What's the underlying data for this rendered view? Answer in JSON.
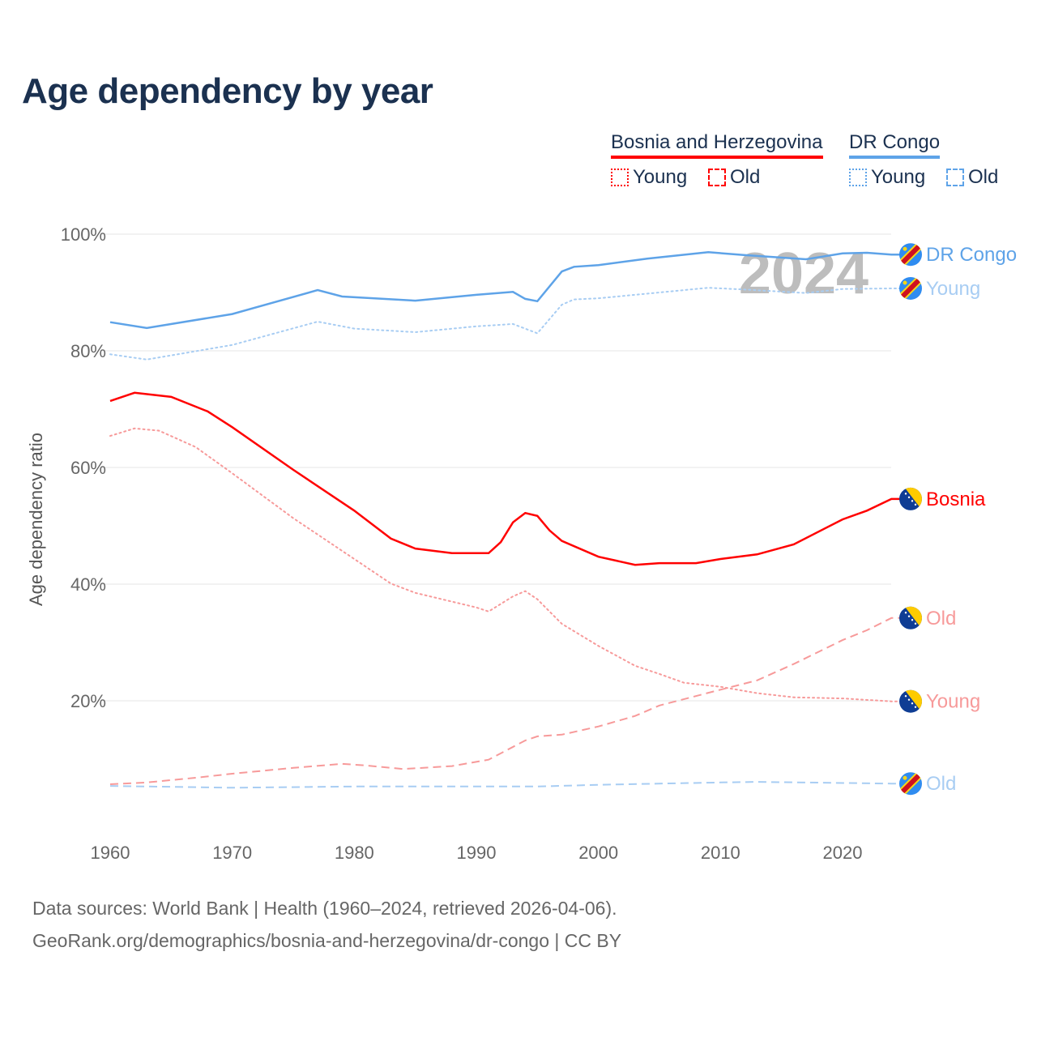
{
  "chart_data": {
    "type": "line",
    "title": "Age dependency by year",
    "ylabel": "Age dependency ratio",
    "xlabel": "",
    "xlim": [
      1960,
      2024
    ],
    "ylim": [
      0,
      100
    ],
    "x_ticks": [
      "1960",
      "1970",
      "1980",
      "1990",
      "2000",
      "2010",
      "2020"
    ],
    "y_ticks": [
      "20%",
      "40%",
      "60%",
      "80%",
      "100%"
    ],
    "y_tick_values": [
      20,
      40,
      60,
      80,
      100
    ],
    "year_watermark": "2024",
    "grid": true,
    "legend": {
      "placement": "top-right",
      "groups": [
        {
          "name": "Bosnia and Herzegovina",
          "color": "#ff0000",
          "items": [
            "Young",
            "Old"
          ]
        },
        {
          "name": "DR Congo",
          "color": "#5ea3e8",
          "items": [
            "Young",
            "Old"
          ]
        }
      ]
    },
    "series": [
      {
        "name": "DR Congo",
        "end_label": "DR Congo",
        "color": "#5ea3e8",
        "style": "solid",
        "flag": "cd",
        "points": [
          [
            1960,
            84.9
          ],
          [
            1963,
            83.9
          ],
          [
            1970,
            86.3
          ],
          [
            1977,
            90.4
          ],
          [
            1979,
            89.3
          ],
          [
            1985,
            88.6
          ],
          [
            1990,
            89.6
          ],
          [
            1993,
            90.1
          ],
          [
            1994,
            88.9
          ],
          [
            1995,
            88.5
          ],
          [
            1997,
            93.6
          ],
          [
            1998,
            94.4
          ],
          [
            2000,
            94.7
          ],
          [
            2004,
            95.8
          ],
          [
            2009,
            96.9
          ],
          [
            2012,
            96.4
          ],
          [
            2017,
            95.7
          ],
          [
            2020,
            96.7
          ],
          [
            2022,
            96.8
          ],
          [
            2024,
            96.5
          ]
        ]
      },
      {
        "name": "DR Congo Young",
        "end_label": "Young",
        "color": "#a8cdf3",
        "style": "dotted",
        "flag": "cd",
        "points": [
          [
            1960,
            79.4
          ],
          [
            1963,
            78.5
          ],
          [
            1970,
            81
          ],
          [
            1977,
            85
          ],
          [
            1980,
            83.8
          ],
          [
            1985,
            83.2
          ],
          [
            1990,
            84.2
          ],
          [
            1993,
            84.6
          ],
          [
            1995,
            83
          ],
          [
            1997,
            87.9
          ],
          [
            1998,
            88.8
          ],
          [
            2000,
            89
          ],
          [
            2005,
            90
          ],
          [
            2009,
            90.8
          ],
          [
            2012,
            90.5
          ],
          [
            2017,
            89.9
          ],
          [
            2020,
            90.6
          ],
          [
            2024,
            90.7
          ]
        ]
      },
      {
        "name": "DR Congo Old",
        "end_label": "Old",
        "color": "#a8cdf3",
        "style": "dashed",
        "flag": "cd",
        "points": [
          [
            1960,
            5.4
          ],
          [
            1970,
            5.1
          ],
          [
            1980,
            5.3
          ],
          [
            1995,
            5.3
          ],
          [
            2000,
            5.6
          ],
          [
            2010,
            6.0
          ],
          [
            2013,
            6.1
          ],
          [
            2024,
            5.8
          ]
        ]
      },
      {
        "name": "Bosnia",
        "end_label": "Bosnia",
        "color": "#ff0000",
        "style": "solid",
        "flag": "ba",
        "points": [
          [
            1960,
            71.4
          ],
          [
            1962,
            72.8
          ],
          [
            1965,
            72.1
          ],
          [
            1968,
            69.6
          ],
          [
            1970,
            66.9
          ],
          [
            1975,
            59.6
          ],
          [
            1980,
            52.6
          ],
          [
            1983,
            47.8
          ],
          [
            1985,
            46.1
          ],
          [
            1988,
            45.3
          ],
          [
            1991,
            45.3
          ],
          [
            1992,
            47.2
          ],
          [
            1993,
            50.6
          ],
          [
            1994,
            52.2
          ],
          [
            1995,
            51.7
          ],
          [
            1996,
            49.2
          ],
          [
            1997,
            47.4
          ],
          [
            2000,
            44.7
          ],
          [
            2003,
            43.3
          ],
          [
            2005,
            43.6
          ],
          [
            2008,
            43.6
          ],
          [
            2010,
            44.3
          ],
          [
            2013,
            45.1
          ],
          [
            2016,
            46.8
          ],
          [
            2020,
            51.1
          ],
          [
            2022,
            52.6
          ],
          [
            2024,
            54.6
          ]
        ]
      },
      {
        "name": "Bosnia Old",
        "end_label": "Old",
        "color": "#f79a9a",
        "style": "dashed",
        "flag": "ba",
        "points": [
          [
            1960,
            5.7
          ],
          [
            1963,
            6.0
          ],
          [
            1967,
            6.8
          ],
          [
            1970,
            7.5
          ],
          [
            1975,
            8.5
          ],
          [
            1979,
            9.2
          ],
          [
            1981,
            8.9
          ],
          [
            1984,
            8.3
          ],
          [
            1988,
            8.8
          ],
          [
            1991,
            9.9
          ],
          [
            1994,
            13.2
          ],
          [
            1995,
            13.9
          ],
          [
            1997,
            14.2
          ],
          [
            2000,
            15.6
          ],
          [
            2003,
            17.4
          ],
          [
            2005,
            19.2
          ],
          [
            2010,
            21.9
          ],
          [
            2013,
            23.5
          ],
          [
            2016,
            26.3
          ],
          [
            2020,
            30.4
          ],
          [
            2022,
            32.1
          ],
          [
            2024,
            34.2
          ]
        ]
      },
      {
        "name": "Bosnia Young",
        "end_label": "Young",
        "color": "#f79a9a",
        "style": "dotted",
        "flag": "ba",
        "points": [
          [
            1960,
            65.4
          ],
          [
            1962,
            66.7
          ],
          [
            1964,
            66.3
          ],
          [
            1967,
            63.5
          ],
          [
            1970,
            59
          ],
          [
            1975,
            51.3
          ],
          [
            1980,
            44.3
          ],
          [
            1983,
            40.1
          ],
          [
            1985,
            38.5
          ],
          [
            1990,
            36
          ],
          [
            1991,
            35.3
          ],
          [
            1993,
            37.9
          ],
          [
            1994,
            38.8
          ],
          [
            1995,
            37.4
          ],
          [
            1997,
            33.2
          ],
          [
            2000,
            29.4
          ],
          [
            2003,
            26
          ],
          [
            2005,
            24.6
          ],
          [
            2007,
            23.1
          ],
          [
            2010,
            22.4
          ],
          [
            2013,
            21.3
          ],
          [
            2016,
            20.6
          ],
          [
            2020,
            20.4
          ],
          [
            2024,
            19.9
          ]
        ]
      }
    ]
  },
  "footer": {
    "line1": "Data sources: World Bank | Health (1960–2024, retrieved 2026-04-06).",
    "line2": "GeoRank.org/demographics/bosnia-and-herzegovina/dr-congo | CC BY"
  }
}
